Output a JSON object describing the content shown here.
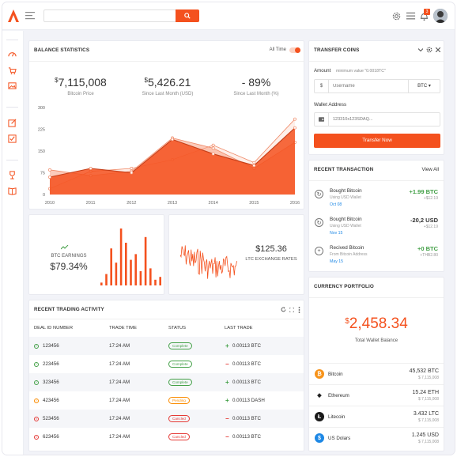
{
  "search": {
    "placeholder": ""
  },
  "balance": {
    "title": "BALANCE STATISTICS",
    "filter_label": "All Time",
    "stats": [
      {
        "currency": "$",
        "value": "7,115,008",
        "label": "Bitcoin Price"
      },
      {
        "currency": "$",
        "value": "5,426.21",
        "label": "Since Last Month (USD)"
      },
      {
        "currency": "",
        "value": "- 89%",
        "label": "Since Last Month (%)"
      }
    ]
  },
  "chart_data": {
    "type": "area",
    "categories": [
      "2010",
      "2011",
      "2012",
      "2013",
      "2014",
      "2015",
      "2016"
    ],
    "y_ticks": [
      "0",
      "75",
      "150",
      "225",
      "300"
    ],
    "ylim": [
      0,
      300
    ],
    "grid": false,
    "series": [
      {
        "values": [
          60,
          90,
          75,
          190,
          140,
          100,
          230
        ]
      },
      {
        "values": [
          85,
          65,
          80,
          195,
          160,
          90,
          180
        ]
      },
      {
        "values": [
          20,
          80,
          90,
          120,
          170,
          110,
          260
        ]
      }
    ],
    "colors": [
      "#f4511e",
      "#f7a184",
      "#fbd0c1"
    ]
  },
  "btc_card": {
    "title": "BTC EARNINGS",
    "value": "$79.34%",
    "bars": [
      0.05,
      0.2,
      0.65,
      0.4,
      1.0,
      0.75,
      0.45,
      0.55,
      0.25,
      0.85,
      0.3,
      0.1,
      0.15
    ]
  },
  "ltc_card": {
    "value": "$125.36",
    "label": "LTC EXCHANGE RATES"
  },
  "trading": {
    "title": "RECENT TRADING ACTIVITY",
    "headers": [
      "DEAL ID NUMBER",
      "TRADE TIME",
      "STATUS",
      "LAST TRADE"
    ],
    "rows": [
      {
        "id": "123456",
        "time": "17:24 AM",
        "status": "Complete",
        "trade": "0.00113 BTC",
        "dir": "+"
      },
      {
        "id": "223456",
        "time": "17:24 AM",
        "status": "Complete",
        "trade": "0.00113 BTC",
        "dir": "-"
      },
      {
        "id": "323456",
        "time": "17:24 AM",
        "status": "Complete",
        "trade": "0.00113 BTC",
        "dir": "+"
      },
      {
        "id": "423456",
        "time": "17:24 AM",
        "status": "Pending",
        "trade": "0.00113 DASH",
        "dir": "+"
      },
      {
        "id": "523456",
        "time": "17:24 AM",
        "status": "Cancled",
        "trade": "0.00113 BTC",
        "dir": "-"
      },
      {
        "id": "623456",
        "time": "17:24 AM",
        "status": "Cancled",
        "trade": "0.00113 BTC",
        "dir": "-"
      }
    ]
  },
  "transfer": {
    "title": "TRANSFER COINS",
    "amount_label": "Amount",
    "amount_hint": "minimum value \"0.0018TC\"",
    "currency_symbol": "$",
    "username_placeholder": "Username",
    "coin_select": "BTC ▾",
    "wallet_label": "Wallet Address",
    "wallet_placeholder": "123310x123SDAQ...",
    "button": "Transfer Now"
  },
  "recent_tx": {
    "title": "RECENT TRANSACTION",
    "view_all": "View All",
    "items": [
      {
        "title": "Bought Bitcoin",
        "sub": "Using USD Wallet",
        "date": "Oct 08",
        "amount": "+1.99 BTC",
        "usd": "+$12.19",
        "color": "#43a047",
        "icon": "↻"
      },
      {
        "title": "Bought Bitcoin",
        "sub": "Using USD Wallet",
        "date": "Nov 15",
        "amount": "-20,2 USD",
        "usd": "+$12.19",
        "color": "#333333",
        "icon": "↻"
      },
      {
        "title": "Recived Bitcoin",
        "sub": "From Bitcoin Address",
        "date": "May 15",
        "amount": "+0 BTC",
        "usd": "+THB2.80",
        "color": "#43a047",
        "icon": "+"
      }
    ]
  },
  "portfolio": {
    "title": "CURRENCY PORTFOLIO",
    "currency": "$",
    "total": "2,458.34",
    "total_label": "Total Wallet Balance",
    "coins": [
      {
        "name": "Bitcoin",
        "amount": "45,532 BTC",
        "usd": "$ 7,115,008",
        "color": "#f7931a",
        "glyph": "₿"
      },
      {
        "name": "Ethereum",
        "amount": "15.24 ETH",
        "usd": "$ 7,115,008",
        "color": "#ffffff",
        "glyph": "◆"
      },
      {
        "name": "Litecoin",
        "amount": "3.432 LTC",
        "usd": "$ 7,115,008",
        "color": "#1a1a1a",
        "glyph": "Ł"
      },
      {
        "name": "US Dolars",
        "amount": "1.245 USD",
        "usd": "$ 7,115,008",
        "color": "#1e88e5",
        "glyph": "$"
      }
    ]
  },
  "notifications": {
    "count": "3"
  }
}
